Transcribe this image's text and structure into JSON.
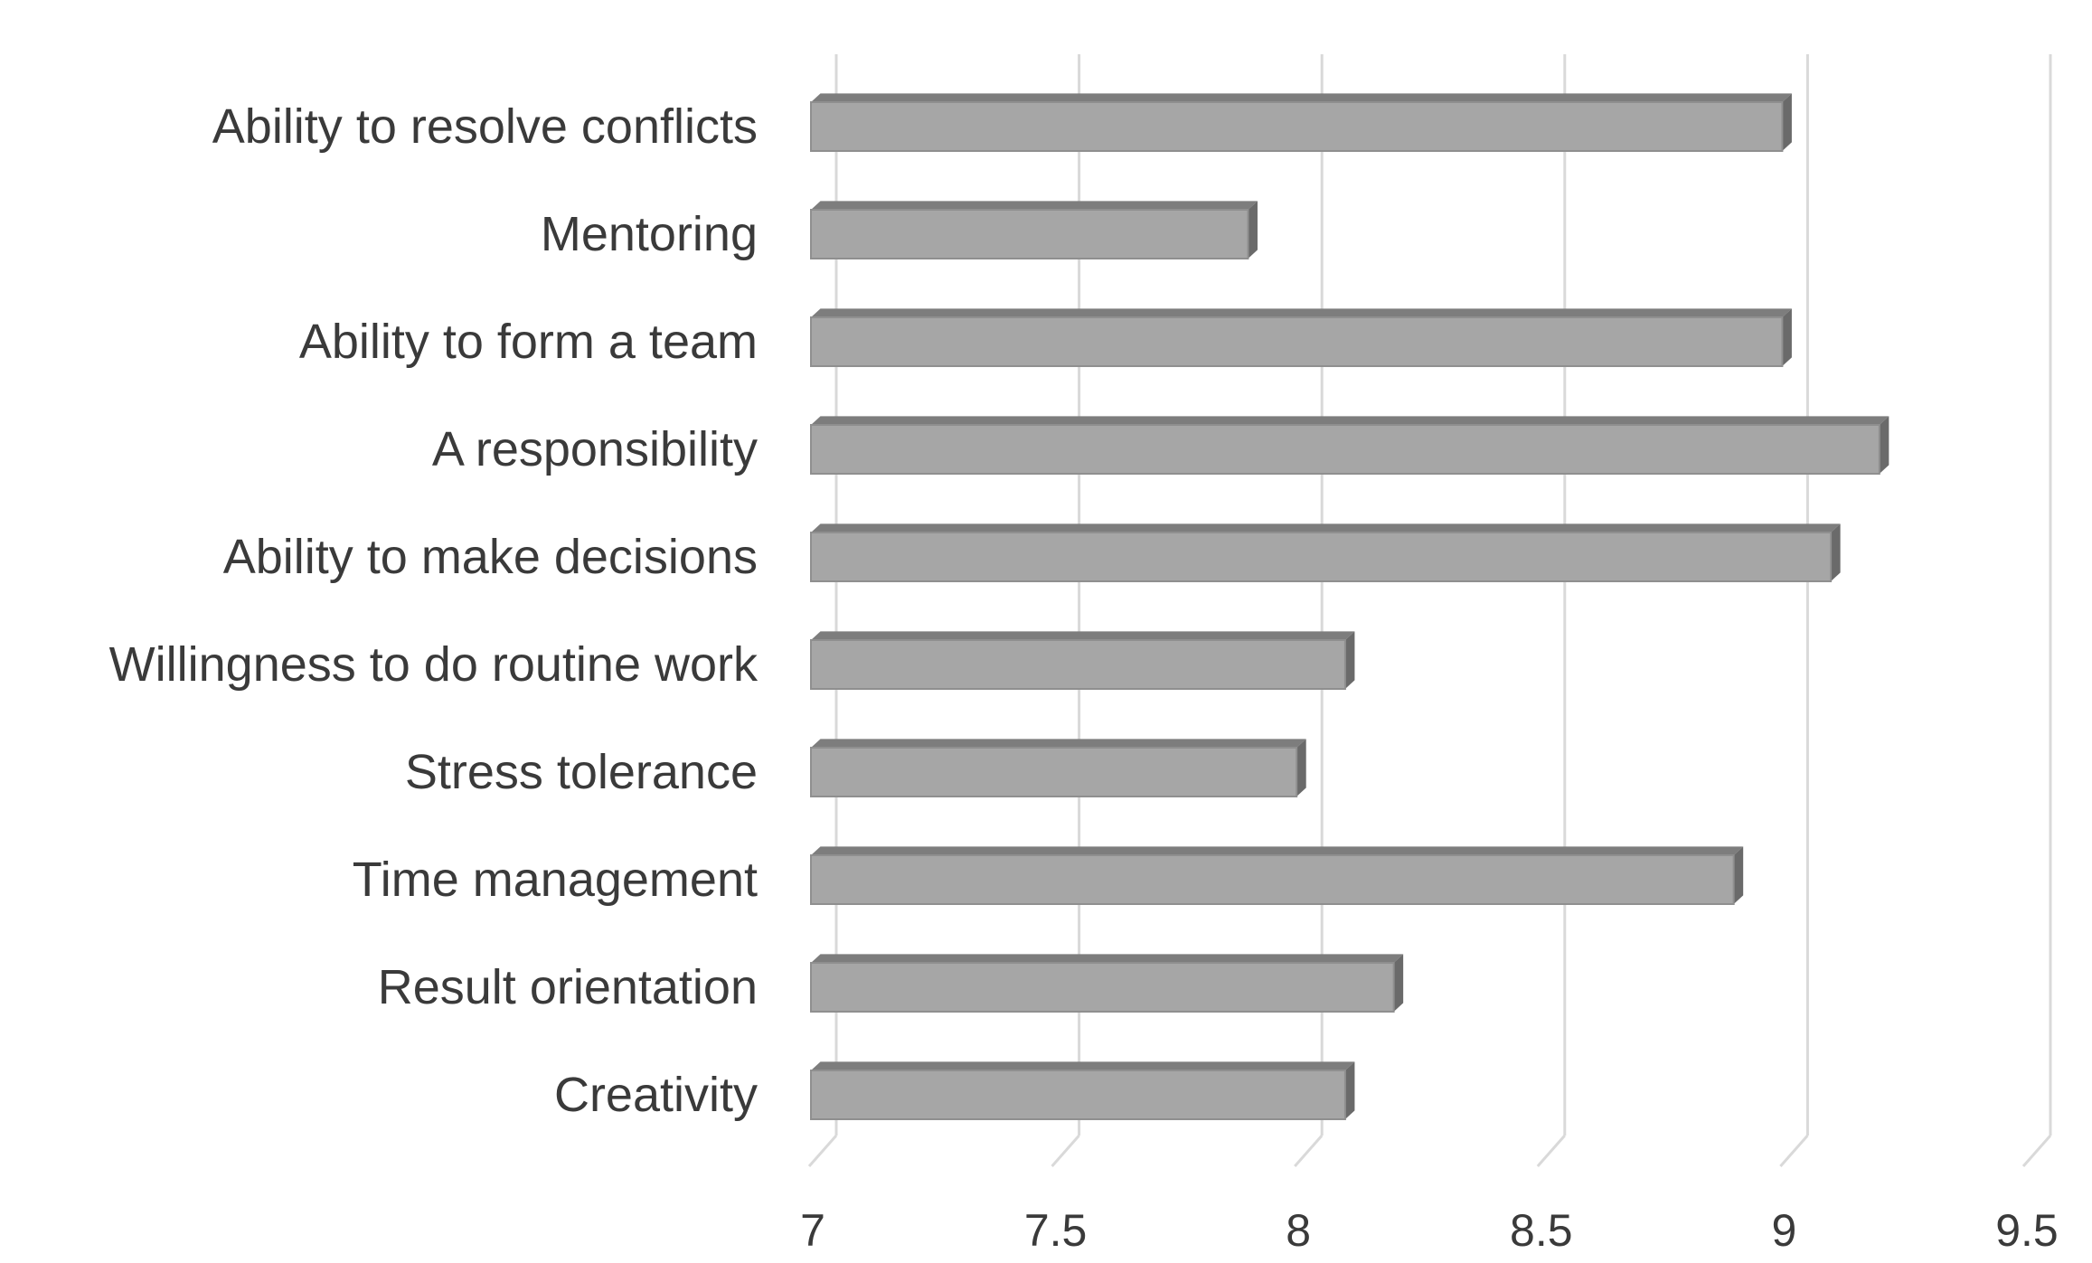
{
  "chart_data": {
    "type": "bar",
    "orientation": "horizontal",
    "categories": [
      "Ability to resolve conflicts",
      "Mentoring",
      "Ability to form a team",
      "A responsibility",
      "Ability to make decisions",
      "Willingness to do routine work",
      "Stress tolerance",
      "Time management",
      "Result orientation",
      "Creativity"
    ],
    "values": [
      9.0,
      7.9,
      9.0,
      9.2,
      9.1,
      8.1,
      8.0,
      8.9,
      8.2,
      8.1
    ],
    "xlim": [
      7,
      9.5
    ],
    "xticks": [
      "7",
      "7.5",
      "8",
      "8.5",
      "9",
      "9.5"
    ],
    "title": "",
    "xlabel": "",
    "ylabel": "",
    "grid": true,
    "style": "3d-bar",
    "colors": {
      "bar_front": "#a6a6a6",
      "bar_top": "#7d7d7d",
      "bar_side": "#6a6a6a",
      "grid": "#d9d9d9",
      "text": "#3a3a3a"
    }
  }
}
